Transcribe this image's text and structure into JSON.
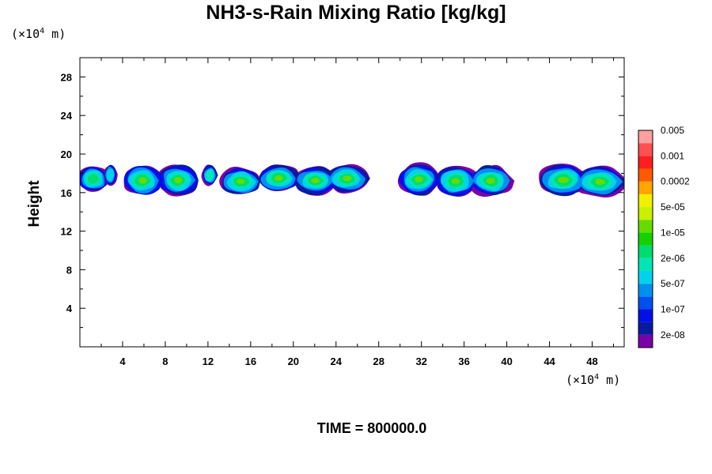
{
  "chart_data": {
    "type": "heatmap",
    "title": "NH3-s-Rain Mixing Ratio [kg/kg]",
    "ylabel": "Height",
    "x_unit_prefix": "(×10",
    "x_unit_exp": "4",
    "x_unit_suffix": " m)",
    "y_unit_prefix": "(×10",
    "y_unit_exp": "4",
    "y_unit_suffix": " m)",
    "xlim": [
      0,
      51
    ],
    "ylim": [
      0,
      30
    ],
    "x_ticks": [
      4,
      8,
      12,
      16,
      20,
      24,
      28,
      32,
      36,
      40,
      44,
      48
    ],
    "y_ticks": [
      4,
      8,
      12,
      16,
      20,
      24,
      28
    ],
    "colorbar": {
      "colors": [
        "#7a00a8",
        "#0a1aa0",
        "#0010e6",
        "#0050f0",
        "#0090f0",
        "#00d2ee",
        "#00e6b4",
        "#00dc6e",
        "#14d200",
        "#64dc00",
        "#c8f000",
        "#f0f000",
        "#ffa500",
        "#ff5a00",
        "#ff1e1e",
        "#ff5050",
        "#ffa0a0"
      ],
      "labels": [
        "2e-08",
        "1e-07",
        "5e-07",
        "2e-06",
        "1e-05",
        "5e-05",
        "0.0002",
        "0.001",
        "0.005"
      ]
    },
    "cloud_bands": [
      {
        "x": [
          0.0,
          2.5
        ],
        "y": [
          16.2,
          18.8
        ],
        "peak": 9
      },
      {
        "x": [
          2.5,
          3.5
        ],
        "y": [
          17.0,
          19.0
        ],
        "peak": 6
      },
      {
        "x": [
          4.5,
          11.0
        ],
        "y": [
          15.7,
          18.8
        ],
        "peak": 10
      },
      {
        "x": [
          11.5,
          12.7
        ],
        "y": [
          16.8,
          18.8
        ],
        "peak": 7
      },
      {
        "x": [
          13.5,
          27.0
        ],
        "y": [
          16.0,
          18.8
        ],
        "peak": 10
      },
      {
        "x": [
          30.0,
          40.0
        ],
        "y": [
          15.7,
          18.8
        ],
        "peak": 10
      },
      {
        "x": [
          43.0,
          51.0
        ],
        "y": [
          15.8,
          18.9
        ],
        "peak": 10
      }
    ],
    "time_label": "TIME = 800000.0"
  }
}
